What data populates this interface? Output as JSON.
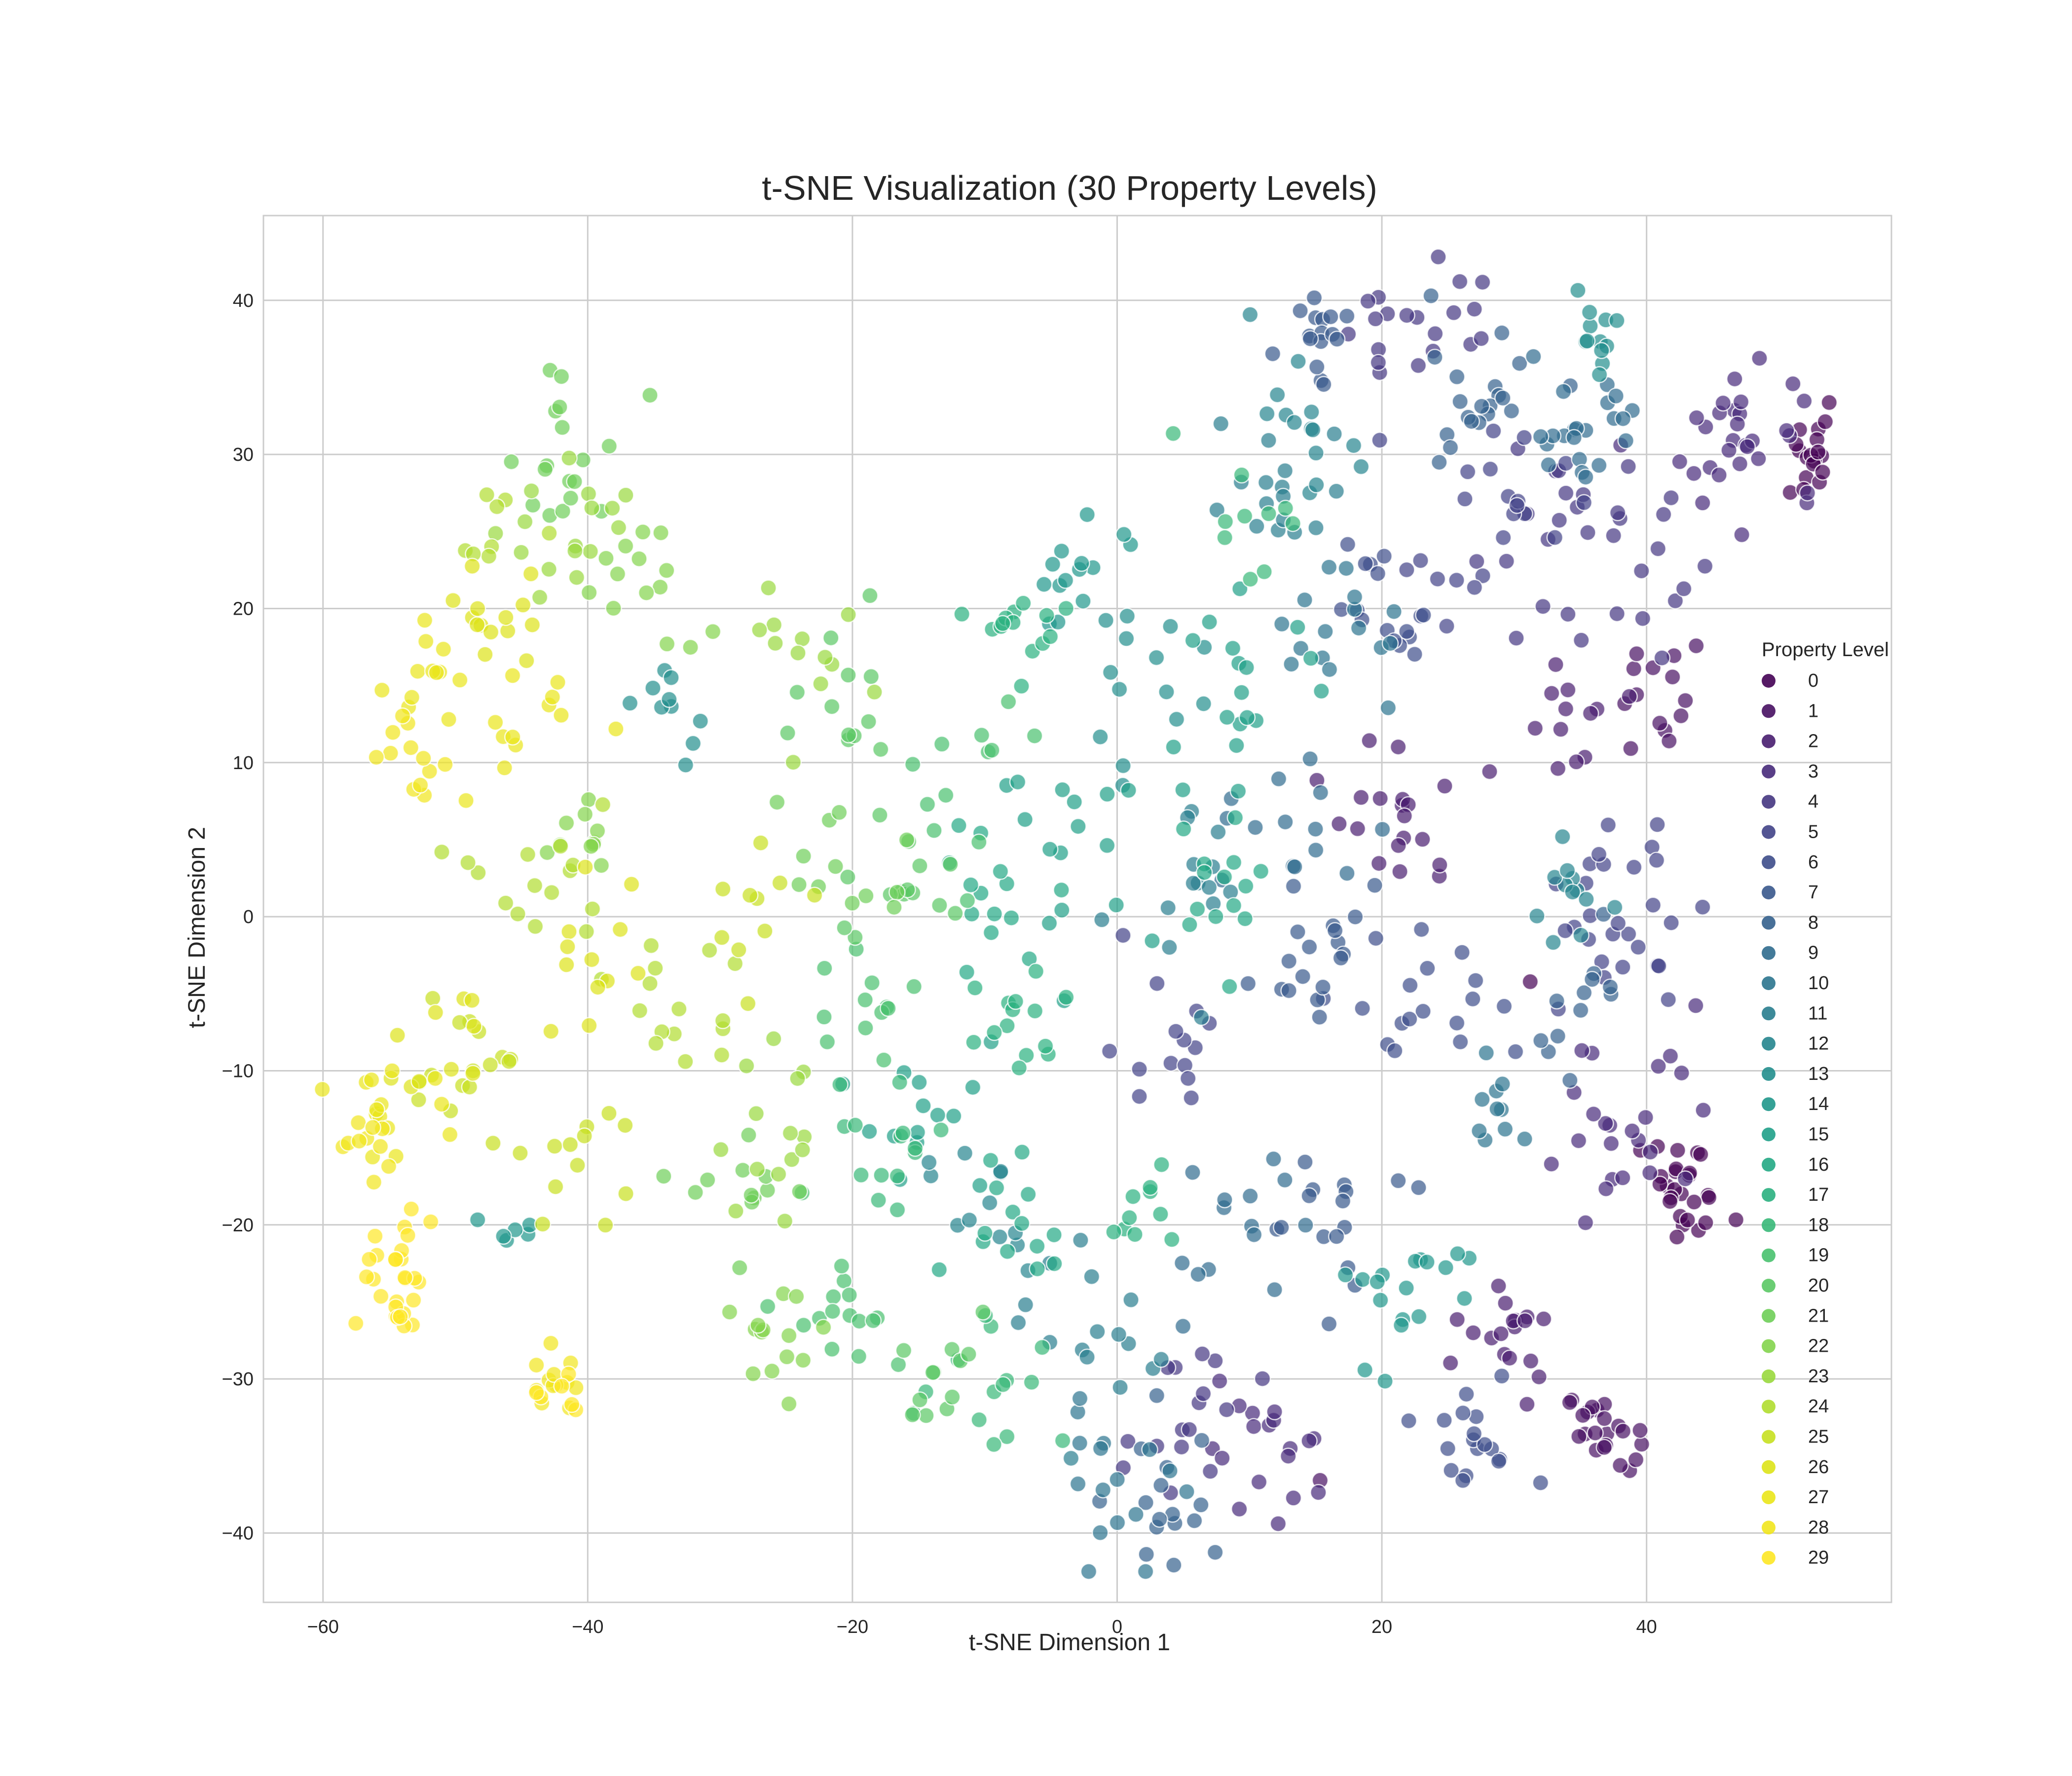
{
  "chart_data": {
    "type": "scatter",
    "title": "t-SNE Visualization (30 Property Levels)",
    "xlabel": "t-SNE Dimension 1",
    "ylabel": "t-SNE Dimension 2",
    "xlim": [
      -64.5,
      58.5
    ],
    "ylim": [
      -44.5,
      45.5
    ],
    "xticks": [
      -60,
      -40,
      -20,
      0,
      20,
      40
    ],
    "yticks": [
      -40,
      -30,
      -20,
      -10,
      0,
      10,
      20,
      30,
      40
    ],
    "xtick_labels": [
      "−60",
      "−40",
      "−20",
      "0",
      "20",
      "40"
    ],
    "ytick_labels": [
      "−40",
      "−30",
      "−20",
      "−10",
      "0",
      "10",
      "20",
      "30",
      "40"
    ],
    "grid": true,
    "colormap": "viridis",
    "point_alpha": 0.7,
    "legend": {
      "title": "Property Level",
      "placement": "right",
      "labels": [
        "0",
        "1",
        "2",
        "3",
        "4",
        "5",
        "6",
        "7",
        "8",
        "9",
        "10",
        "11",
        "12",
        "13",
        "14",
        "15",
        "16",
        "17",
        "18",
        "19",
        "20",
        "21",
        "22",
        "23",
        "24",
        "25",
        "26",
        "27",
        "28",
        "29"
      ],
      "colors": [
        "#440154",
        "#470f62",
        "#481d6f",
        "#472a7a",
        "#453681",
        "#414287",
        "#3d4d8a",
        "#38588c",
        "#34618d",
        "#2f6b8e",
        "#2b748e",
        "#287d8e",
        "#25858e",
        "#228e8d",
        "#1f978b",
        "#1fa088",
        "#22a884",
        "#2ab07f",
        "#37b878",
        "#48c16e",
        "#5ac864",
        "#6ece58",
        "#83d44c",
        "#99d83d",
        "#b0dd2f",
        "#c7e020",
        "#dde318",
        "#eae51a",
        "#f1e51d",
        "#fde725"
      ]
    },
    "clusters": [
      {
        "level": 0,
        "cx": 52.5,
        "cy": 29.5,
        "spread": 1.3,
        "n": 18
      },
      {
        "level": 0,
        "cx": 42.8,
        "cy": -17.8,
        "spread": 1.8,
        "n": 26
      },
      {
        "level": 0,
        "cx": 30.6,
        "cy": -4.8,
        "spread": 0.3,
        "n": 1
      },
      {
        "level": 1,
        "cx": 41.3,
        "cy": 13.9,
        "spread": 1.8,
        "n": 14
      },
      {
        "level": 1,
        "cx": 36.6,
        "cy": -33.2,
        "spread": 1.3,
        "n": 22
      },
      {
        "level": 1,
        "cx": 15.2,
        "cy": -36.5,
        "spread": 0.3,
        "n": 1
      },
      {
        "level": 2,
        "cx": 29.2,
        "cy": -28.0,
        "spread": 1.9,
        "n": 18
      },
      {
        "level": 2,
        "cx": 21.5,
        "cy": 6.5,
        "spread": 2.5,
        "n": 20
      },
      {
        "level": 2,
        "cx": 35.0,
        "cy": 13.2,
        "spread": 2.0,
        "n": 12
      },
      {
        "level": 3,
        "cx": 47.8,
        "cy": 31.0,
        "spread": 3.0,
        "n": 30
      },
      {
        "level": 3,
        "cx": 38.8,
        "cy": -12.8,
        "spread": 3.5,
        "n": 24
      },
      {
        "level": 3,
        "cx": 12.0,
        "cy": -33.5,
        "spread": 3.0,
        "n": 18
      },
      {
        "level": 4,
        "cx": 22.5,
        "cy": 38.2,
        "spread": 2.5,
        "n": 20
      },
      {
        "level": 4,
        "cx": 35.0,
        "cy": 24.5,
        "spread": 4.0,
        "n": 30
      },
      {
        "level": 4,
        "cx": 5.0,
        "cy": -33.0,
        "spread": 3.0,
        "n": 16
      },
      {
        "level": 5,
        "cx": 28.0,
        "cy": 26.0,
        "spread": 3.0,
        "n": 22
      },
      {
        "level": 5,
        "cx": 37.5,
        "cy": 0.0,
        "spread": 3.0,
        "n": 28
      },
      {
        "level": 5,
        "cx": 3.5,
        "cy": -8.0,
        "spread": 2.5,
        "n": 14
      },
      {
        "level": 6,
        "cx": 26.8,
        "cy": -34.5,
        "spread": 2.0,
        "n": 18
      },
      {
        "level": 6,
        "cx": 20.5,
        "cy": 20.0,
        "spread": 2.5,
        "n": 16
      },
      {
        "level": 6,
        "cx": 22.5,
        "cy": -5.5,
        "spread": 2.8,
        "n": 18
      },
      {
        "level": 7,
        "cx": 15.5,
        "cy": 38.5,
        "spread": 1.5,
        "n": 16
      },
      {
        "level": 7,
        "cx": 15.5,
        "cy": -20.0,
        "spread": 2.5,
        "n": 16
      },
      {
        "level": 7,
        "cx": 14.0,
        "cy": -3.0,
        "spread": 3.0,
        "n": 18
      },
      {
        "level": 8,
        "cx": 4.0,
        "cy": -38.5,
        "spread": 2.5,
        "n": 16
      },
      {
        "level": 8,
        "cx": 26.5,
        "cy": 33.5,
        "spread": 3.0,
        "n": 20
      },
      {
        "level": 8,
        "cx": 35.5,
        "cy": -5.0,
        "spread": 2.5,
        "n": 12
      },
      {
        "level": 9,
        "cx": 8.0,
        "cy": -20.5,
        "spread": 2.5,
        "n": 14
      },
      {
        "level": 9,
        "cx": 13.5,
        "cy": 5.5,
        "spread": 2.5,
        "n": 14
      },
      {
        "level": 9,
        "cx": 35.2,
        "cy": 31.5,
        "spread": 2.2,
        "n": 22
      },
      {
        "level": 10,
        "cx": 0.8,
        "cy": -36.0,
        "spread": 2.5,
        "n": 16
      },
      {
        "level": 10,
        "cx": 17.0,
        "cy": 18.0,
        "spread": 2.5,
        "n": 16
      },
      {
        "level": 10,
        "cx": 29.0,
        "cy": -12.0,
        "spread": 1.5,
        "n": 10
      },
      {
        "level": 11,
        "cx": 12.0,
        "cy": 27.5,
        "spread": 3.0,
        "n": 16
      },
      {
        "level": 11,
        "cx": -0.5,
        "cy": -27.5,
        "spread": 3.0,
        "n": 16
      },
      {
        "level": 11,
        "cx": 4.0,
        "cy": 0.5,
        "spread": 3.0,
        "n": 14
      },
      {
        "level": 12,
        "cx": 14.5,
        "cy": 30.5,
        "spread": 3.0,
        "n": 14
      },
      {
        "level": 12,
        "cx": 34.5,
        "cy": 1.0,
        "spread": 1.5,
        "n": 12
      },
      {
        "level": 12,
        "cx": -12.0,
        "cy": -20.0,
        "spread": 2.5,
        "n": 12
      },
      {
        "level": 13,
        "cx": 36.0,
        "cy": 37.5,
        "spread": 1.2,
        "n": 12
      },
      {
        "level": 13,
        "cx": 1.5,
        "cy": 14.5,
        "spread": 2.5,
        "n": 14
      },
      {
        "level": 13,
        "cx": -34.5,
        "cy": 14.5,
        "spread": 1.8,
        "n": 10
      },
      {
        "level": 14,
        "cx": -2.5,
        "cy": 21.5,
        "spread": 2.2,
        "n": 14
      },
      {
        "level": 14,
        "cx": 21.5,
        "cy": -24.5,
        "spread": 3.0,
        "n": 18
      },
      {
        "level": 14,
        "cx": -45.5,
        "cy": -20.0,
        "spread": 1.3,
        "n": 6
      },
      {
        "level": 15,
        "cx": 9.5,
        "cy": 15.0,
        "spread": 2.8,
        "n": 18
      },
      {
        "level": 15,
        "cx": -3.0,
        "cy": 4.5,
        "spread": 3.0,
        "n": 16
      },
      {
        "level": 15,
        "cx": -14.0,
        "cy": -13.0,
        "spread": 2.8,
        "n": 14
      },
      {
        "level": 16,
        "cx": -9.5,
        "cy": 1.0,
        "spread": 2.5,
        "n": 14
      },
      {
        "level": 16,
        "cx": 7.5,
        "cy": 2.0,
        "spread": 2.5,
        "n": 14
      },
      {
        "level": 16,
        "cx": -7.5,
        "cy": -18.5,
        "spread": 2.5,
        "n": 14
      },
      {
        "level": 17,
        "cx": -7.0,
        "cy": 17.5,
        "spread": 2.5,
        "n": 14
      },
      {
        "level": 17,
        "cx": -6.5,
        "cy": -7.0,
        "spread": 2.5,
        "n": 14
      },
      {
        "level": 17,
        "cx": 2.0,
        "cy": -19.5,
        "spread": 2.0,
        "n": 10
      },
      {
        "level": 18,
        "cx": -17.5,
        "cy": -14.0,
        "spread": 2.5,
        "n": 14
      },
      {
        "level": 18,
        "cx": -9.0,
        "cy": -29.5,
        "spread": 2.5,
        "n": 14
      },
      {
        "level": 18,
        "cx": 9.5,
        "cy": 26.0,
        "spread": 2.5,
        "n": 10
      },
      {
        "level": 19,
        "cx": -21.0,
        "cy": -25.0,
        "spread": 2.5,
        "n": 16
      },
      {
        "level": 19,
        "cx": -11.5,
        "cy": 9.5,
        "spread": 2.5,
        "n": 12
      },
      {
        "level": 19,
        "cx": -18.0,
        "cy": -6.0,
        "spread": 2.5,
        "n": 12
      },
      {
        "level": 20,
        "cx": -16.5,
        "cy": 3.0,
        "spread": 2.5,
        "n": 14
      },
      {
        "level": 20,
        "cx": -13.5,
        "cy": -30.0,
        "spread": 2.5,
        "n": 12
      },
      {
        "level": 20,
        "cx": -19.5,
        "cy": 14.0,
        "spread": 2.5,
        "n": 12
      },
      {
        "level": 21,
        "cx": -41.5,
        "cy": 29.5,
        "spread": 2.5,
        "n": 18
      },
      {
        "level": 21,
        "cx": -27.5,
        "cy": -17.0,
        "spread": 2.5,
        "n": 12
      },
      {
        "level": 21,
        "cx": -20.5,
        "cy": 3.5,
        "spread": 2.5,
        "n": 12
      },
      {
        "level": 22,
        "cx": -36.0,
        "cy": 21.0,
        "spread": 2.5,
        "n": 14
      },
      {
        "level": 22,
        "cx": -26.0,
        "cy": -28.0,
        "spread": 2.5,
        "n": 14
      },
      {
        "level": 22,
        "cx": -40.0,
        "cy": 5.0,
        "spread": 2.0,
        "n": 10
      },
      {
        "level": 23,
        "cx": -41.0,
        "cy": 24.5,
        "spread": 2.5,
        "n": 16
      },
      {
        "level": 23,
        "cx": -25.5,
        "cy": -14.5,
        "spread": 2.5,
        "n": 14
      },
      {
        "level": 23,
        "cx": -22.5,
        "cy": 17.0,
        "spread": 2.5,
        "n": 12
      },
      {
        "level": 24,
        "cx": -43.5,
        "cy": 2.0,
        "spread": 2.5,
        "n": 16
      },
      {
        "level": 24,
        "cx": -33.0,
        "cy": -5.0,
        "spread": 2.5,
        "n": 14
      },
      {
        "level": 24,
        "cx": -47.0,
        "cy": 25.0,
        "spread": 1.5,
        "n": 8
      },
      {
        "level": 25,
        "cx": -49.0,
        "cy": -10.0,
        "spread": 2.5,
        "n": 16
      },
      {
        "level": 25,
        "cx": -41.0,
        "cy": -15.0,
        "spread": 2.5,
        "n": 12
      },
      {
        "level": 25,
        "cx": -28.0,
        "cy": 0.5,
        "spread": 2.5,
        "n": 10
      },
      {
        "level": 26,
        "cx": -46.5,
        "cy": 19.0,
        "spread": 2.0,
        "n": 14
      },
      {
        "level": 26,
        "cx": -40.0,
        "cy": -3.0,
        "spread": 2.5,
        "n": 12
      },
      {
        "level": 26,
        "cx": -52.0,
        "cy": -9.0,
        "spread": 2.0,
        "n": 10
      },
      {
        "level": 27,
        "cx": -51.5,
        "cy": 15.5,
        "spread": 1.8,
        "n": 12
      },
      {
        "level": 27,
        "cx": -45.0,
        "cy": 11.5,
        "spread": 2.0,
        "n": 12
      },
      {
        "level": 27,
        "cx": -55.0,
        "cy": -12.5,
        "spread": 2.0,
        "n": 14
      },
      {
        "level": 28,
        "cx": -53.5,
        "cy": 11.0,
        "spread": 1.5,
        "n": 12
      },
      {
        "level": 28,
        "cx": -42.5,
        "cy": -30.5,
        "spread": 1.0,
        "n": 12
      },
      {
        "level": 28,
        "cx": -57.0,
        "cy": -15.0,
        "spread": 1.5,
        "n": 10
      },
      {
        "level": 29,
        "cx": -54.0,
        "cy": -22.5,
        "spread": 2.0,
        "n": 18
      },
      {
        "level": 29,
        "cx": -41.5,
        "cy": -31.5,
        "spread": 0.8,
        "n": 6
      },
      {
        "level": 29,
        "cx": -55.0,
        "cy": -26.0,
        "spread": 1.5,
        "n": 10
      }
    ]
  }
}
